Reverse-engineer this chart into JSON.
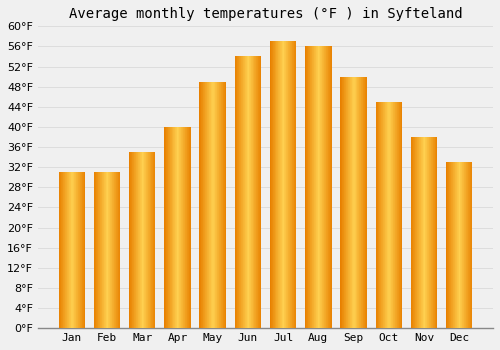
{
  "title": "Average monthly temperatures (°F ) in Syfteland",
  "months": [
    "Jan",
    "Feb",
    "Mar",
    "Apr",
    "May",
    "Jun",
    "Jul",
    "Aug",
    "Sep",
    "Oct",
    "Nov",
    "Dec"
  ],
  "values": [
    31,
    31,
    35,
    40,
    49,
    54,
    57,
    56,
    50,
    45,
    38,
    33
  ],
  "ylim": [
    0,
    60
  ],
  "ytick_step": 4,
  "background_color": "#f0f0f0",
  "grid_color": "#dddddd",
  "title_fontsize": 10,
  "tick_fontsize": 8,
  "bar_color_center": "#FFD050",
  "bar_color_edge": "#E87000",
  "bar_width": 0.75
}
